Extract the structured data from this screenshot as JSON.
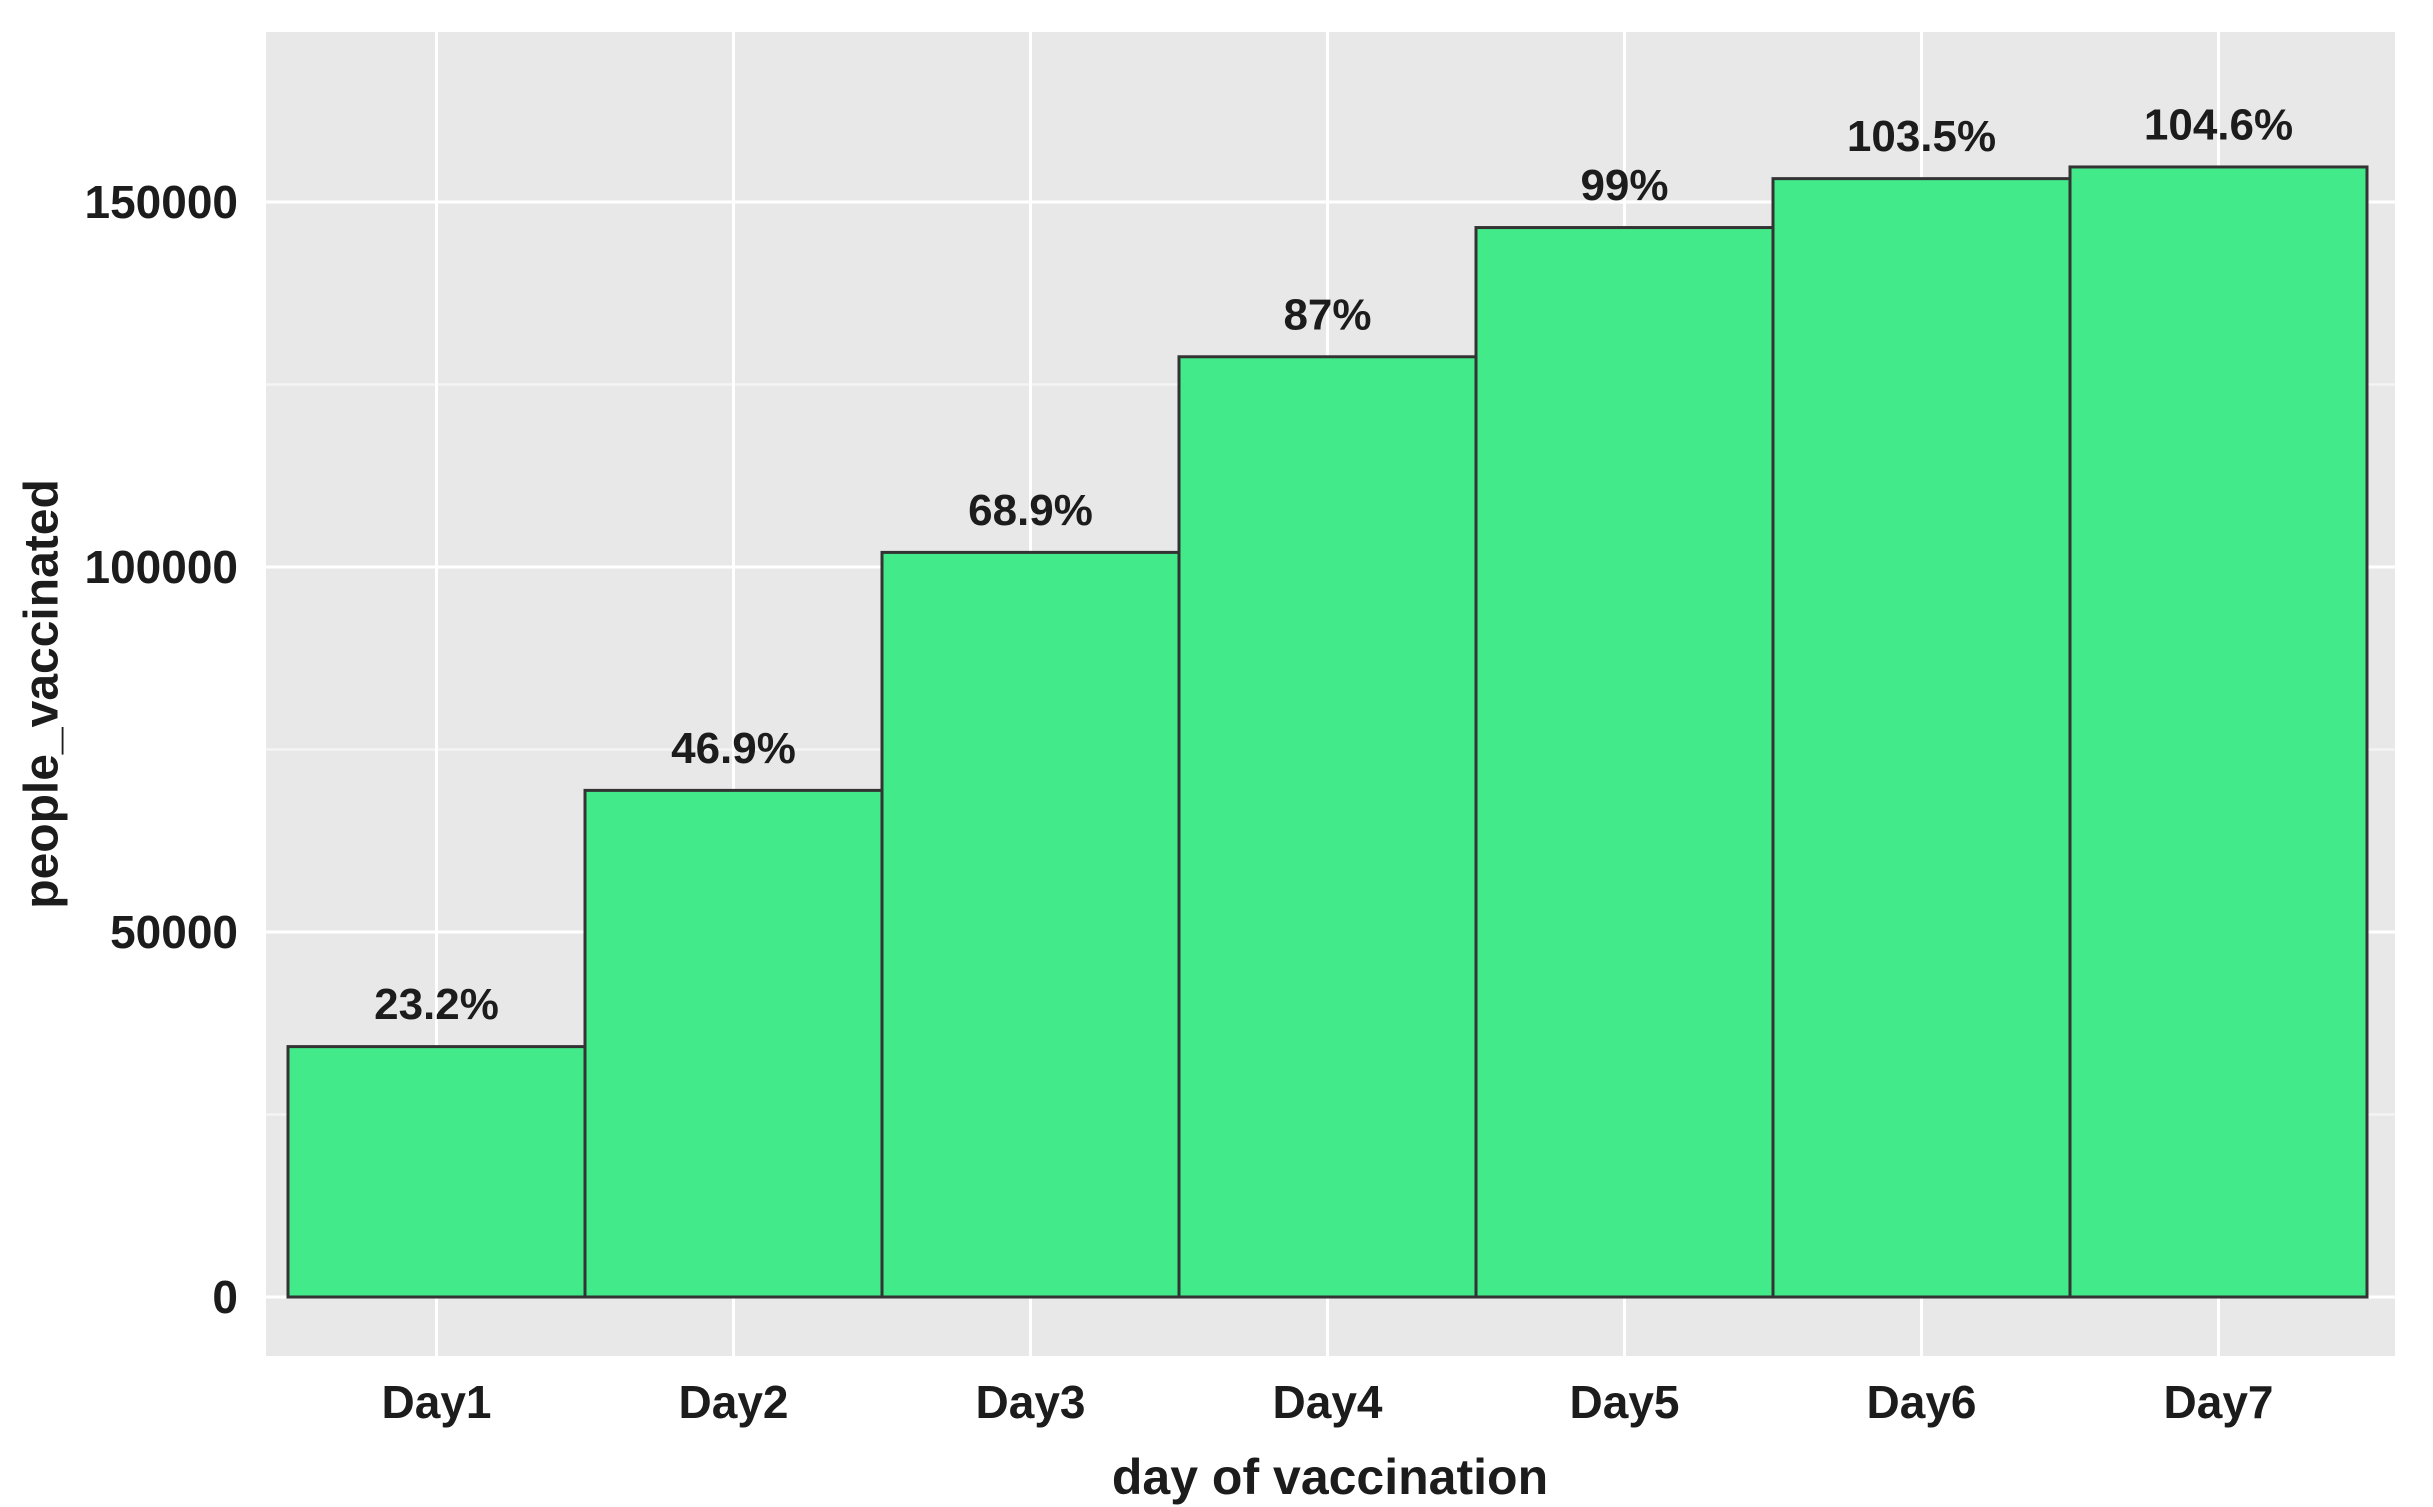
{
  "chart_data": {
    "type": "bar",
    "title": "",
    "xlabel": "day of vaccination",
    "ylabel": "people_vaccinated",
    "categories": [
      "Day1",
      "Day2",
      "Day3",
      "Day4",
      "Day5",
      "Day6",
      "Day7"
    ],
    "values": [
      34300,
      69400,
      102000,
      128800,
      146500,
      153200,
      154800
    ],
    "bar_labels": [
      "23.2%",
      "46.9%",
      "68.9%",
      "87%",
      "99%",
      "103.5%",
      "104.6%"
    ],
    "y_ticks": {
      "values": [
        0,
        50000,
        100000,
        150000
      ],
      "labels": [
        "0",
        "50000",
        "100000",
        "150000"
      ]
    },
    "y_minor_ticks": [
      25000,
      75000,
      125000
    ],
    "ylim": [
      0,
      173000
    ],
    "grid": {
      "horizontal": "major+minor",
      "vertical": "major-at-category-centers"
    },
    "legend": "none",
    "style": {
      "bar_fill": "#43ea89",
      "bar_edge": "#333333",
      "panel_background": "#e8e8e8",
      "grid_major_color": "#ffffff",
      "grid_minor_color": "#ffffff",
      "grid_minor_opacity": 0.5,
      "text_color": "#1c1c1c",
      "figure_background": "#ffffff"
    }
  }
}
